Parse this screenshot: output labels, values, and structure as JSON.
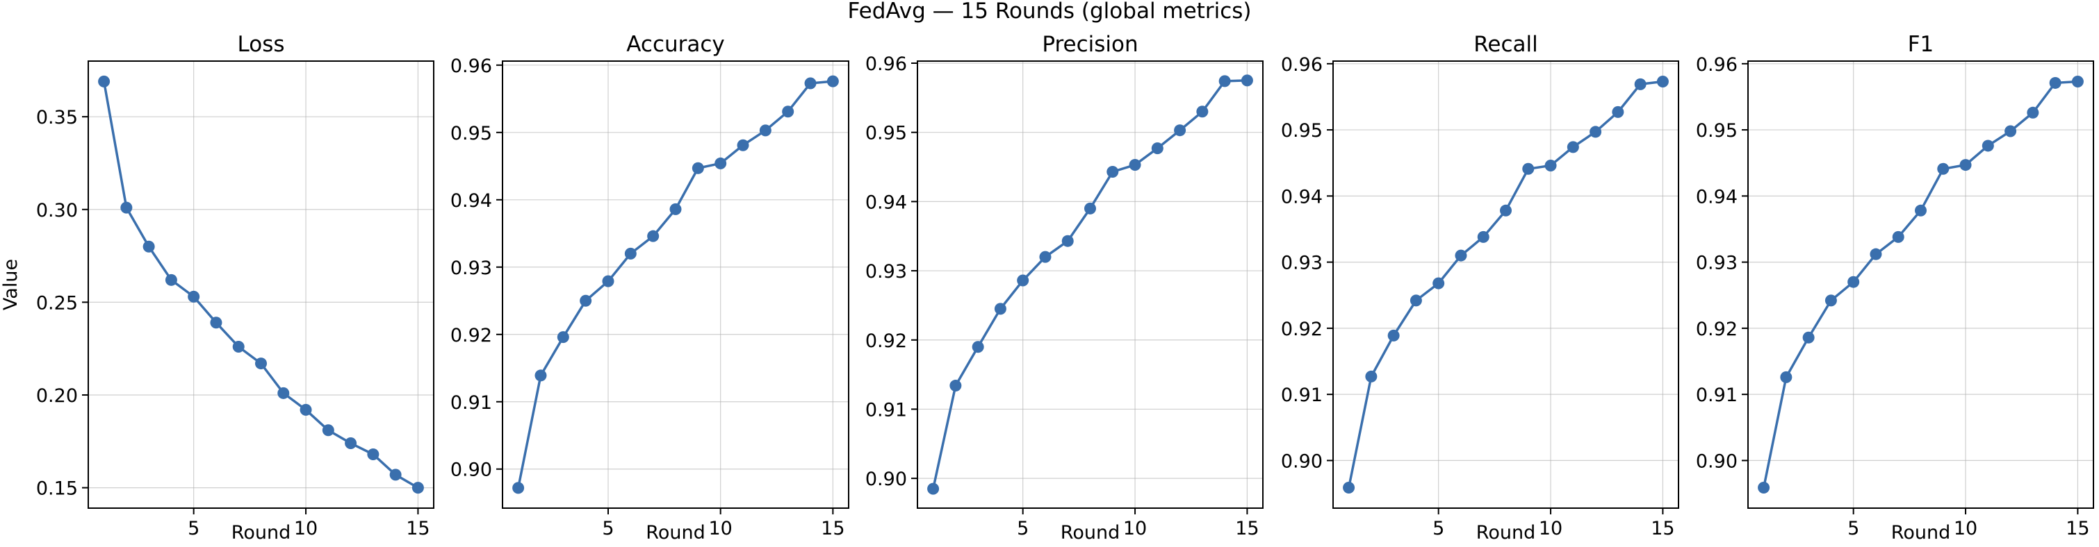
{
  "figure": {
    "suptitle": "FedAvg — 15 Rounds (global metrics)",
    "series_color": "#3a6fad"
  },
  "chart_data": [
    {
      "type": "line",
      "title": "Loss",
      "xlabel": "Round",
      "ylabel": "Value",
      "x": [
        1,
        2,
        3,
        4,
        5,
        6,
        7,
        8,
        9,
        10,
        11,
        12,
        13,
        14,
        15
      ],
      "values": [
        0.369,
        0.301,
        0.28,
        0.262,
        0.253,
        0.239,
        0.226,
        0.217,
        0.201,
        0.192,
        0.181,
        0.174,
        0.168,
        0.157,
        0.15
      ],
      "xlim": [
        0.3,
        15.7
      ],
      "ylim": [
        0.139,
        0.38
      ],
      "xticks": [
        5,
        10,
        15
      ],
      "yticks": [
        0.15,
        0.2,
        0.25,
        0.3,
        0.35
      ],
      "ytick_labels": [
        "0.15",
        "0.20",
        "0.25",
        "0.30",
        "0.35"
      ],
      "grid": true
    },
    {
      "type": "line",
      "title": "Accuracy",
      "xlabel": "Round",
      "ylabel": "",
      "x": [
        1,
        2,
        3,
        4,
        5,
        6,
        7,
        8,
        9,
        10,
        11,
        12,
        13,
        14,
        15
      ],
      "values": [
        0.8972,
        0.9139,
        0.9196,
        0.925,
        0.9279,
        0.932,
        0.9346,
        0.9386,
        0.9447,
        0.9454,
        0.9481,
        0.9503,
        0.9531,
        0.9573,
        0.9576
      ],
      "xlim": [
        0.3,
        15.7
      ],
      "ylim": [
        0.8942,
        0.9606
      ],
      "xticks": [
        5,
        10,
        15
      ],
      "yticks": [
        0.9,
        0.91,
        0.92,
        0.93,
        0.94,
        0.95,
        0.96
      ],
      "ytick_labels": [
        "0.90",
        "0.91",
        "0.92",
        "0.93",
        "0.94",
        "0.95",
        "0.96"
      ],
      "grid": true
    },
    {
      "type": "line",
      "title": "Precision",
      "xlabel": "Round",
      "ylabel": "",
      "x": [
        1,
        2,
        3,
        4,
        5,
        6,
        7,
        8,
        9,
        10,
        11,
        12,
        13,
        14,
        15
      ],
      "values": [
        0.8985,
        0.9134,
        0.919,
        0.9245,
        0.9286,
        0.932,
        0.9343,
        0.939,
        0.9443,
        0.9453,
        0.9477,
        0.9503,
        0.953,
        0.9574,
        0.9575
      ],
      "xlim": [
        0.3,
        15.7
      ],
      "ylim": [
        0.8957,
        0.9603
      ],
      "xticks": [
        5,
        10,
        15
      ],
      "yticks": [
        0.9,
        0.91,
        0.92,
        0.93,
        0.94,
        0.95,
        0.96
      ],
      "ytick_labels": [
        "0.90",
        "0.91",
        "0.92",
        "0.93",
        "0.94",
        "0.95",
        "0.96"
      ],
      "grid": true
    },
    {
      "type": "line",
      "title": "Recall",
      "xlabel": "Round",
      "ylabel": "",
      "x": [
        1,
        2,
        3,
        4,
        5,
        6,
        7,
        8,
        9,
        10,
        11,
        12,
        13,
        14,
        15
      ],
      "values": [
        0.8959,
        0.9127,
        0.9189,
        0.9242,
        0.9268,
        0.931,
        0.9338,
        0.9378,
        0.9441,
        0.9446,
        0.9474,
        0.9497,
        0.9527,
        0.9569,
        0.9573
      ],
      "xlim": [
        0.3,
        15.7
      ],
      "ylim": [
        0.8928,
        0.9604
      ],
      "xticks": [
        5,
        10,
        15
      ],
      "yticks": [
        0.9,
        0.91,
        0.92,
        0.93,
        0.94,
        0.95,
        0.96
      ],
      "ytick_labels": [
        "0.90",
        "0.91",
        "0.92",
        "0.93",
        "0.94",
        "0.95",
        "0.96"
      ],
      "grid": true
    },
    {
      "type": "line",
      "title": "F1",
      "xlabel": "Round",
      "ylabel": "",
      "x": [
        1,
        2,
        3,
        4,
        5,
        6,
        7,
        8,
        9,
        10,
        11,
        12,
        13,
        14,
        15
      ],
      "values": [
        0.8959,
        0.9126,
        0.9186,
        0.9242,
        0.927,
        0.9312,
        0.9338,
        0.9378,
        0.9441,
        0.9447,
        0.9476,
        0.9498,
        0.9526,
        0.9571,
        0.9573
      ],
      "xlim": [
        0.3,
        15.7
      ],
      "ylim": [
        0.8928,
        0.9604
      ],
      "xticks": [
        5,
        10,
        15
      ],
      "yticks": [
        0.9,
        0.91,
        0.92,
        0.93,
        0.94,
        0.95,
        0.96
      ],
      "ytick_labels": [
        "0.90",
        "0.91",
        "0.92",
        "0.93",
        "0.94",
        "0.95",
        "0.96"
      ],
      "grid": true
    }
  ]
}
